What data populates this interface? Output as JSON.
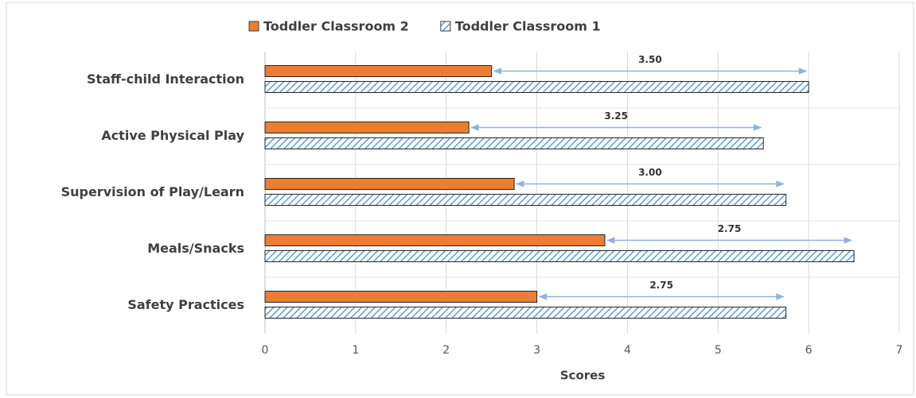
{
  "chart_data": {
    "type": "bar",
    "orientation": "horizontal",
    "categories": [
      "Staff-child Interaction",
      "Active Physical Play",
      "Supervision of Play/Learn",
      "Meals/Snacks",
      "Safety Practices"
    ],
    "series": [
      {
        "name": "Toddler Classroom 2",
        "color": "#ed7d31",
        "values": [
          2.5,
          2.25,
          2.75,
          3.75,
          3.0
        ]
      },
      {
        "name": "Toddler Classroom 1",
        "color": "#5b9bd5",
        "hatch": true,
        "values": [
          6.0,
          5.5,
          5.75,
          6.5,
          5.75
        ]
      }
    ],
    "difference_labels": [
      "3.50",
      "3.25",
      "3.00",
      "2.75",
      "2.75"
    ],
    "x_label": "Scores",
    "xlim": [
      0,
      7
    ],
    "xticks": [
      0,
      1,
      2,
      3,
      4,
      5,
      6,
      7
    ],
    "grid": true,
    "legend": "top"
  }
}
